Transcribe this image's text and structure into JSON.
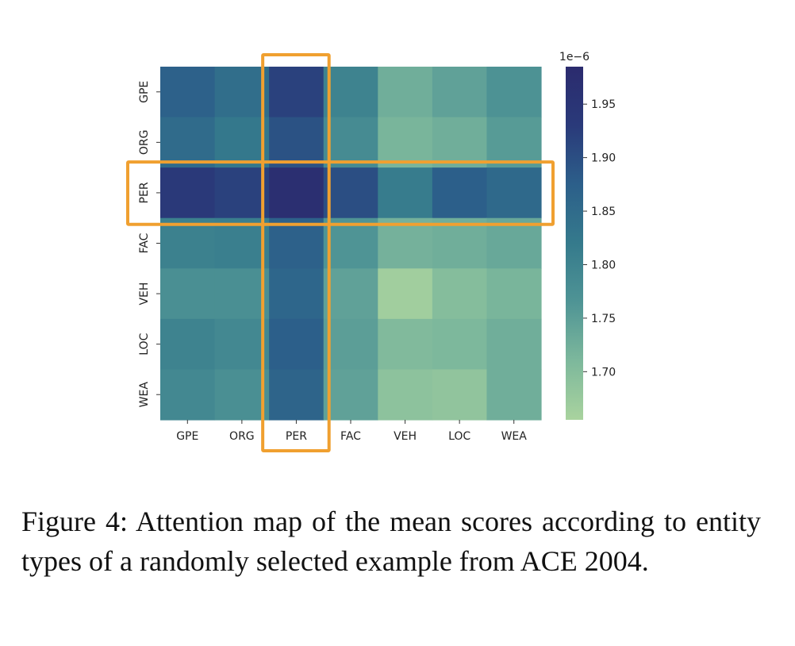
{
  "chart_data": {
    "type": "heatmap",
    "x_categories": [
      "GPE",
      "ORG",
      "PER",
      "FAC",
      "VEH",
      "LOC",
      "WEA"
    ],
    "y_categories": [
      "GPE",
      "ORG",
      "PER",
      "FAC",
      "VEH",
      "LOC",
      "WEA"
    ],
    "values": [
      [
        1.87,
        1.845,
        1.92,
        1.8,
        1.725,
        1.745,
        1.77
      ],
      [
        1.85,
        1.825,
        1.895,
        1.785,
        1.715,
        1.725,
        1.755
      ],
      [
        1.935,
        1.92,
        1.97,
        1.9,
        1.815,
        1.875,
        1.855
      ],
      [
        1.805,
        1.81,
        1.87,
        1.765,
        1.72,
        1.725,
        1.735
      ],
      [
        1.775,
        1.775,
        1.86,
        1.745,
        1.665,
        1.7,
        1.715
      ],
      [
        1.8,
        1.79,
        1.875,
        1.75,
        1.705,
        1.71,
        1.725
      ],
      [
        1.79,
        1.775,
        1.865,
        1.745,
        1.69,
        1.685,
        1.725
      ]
    ],
    "colorbar": {
      "range": [
        1.655,
        1.985
      ],
      "ticks": [
        "1.95",
        "1.90",
        "1.85",
        "1.80",
        "1.75",
        "1.70"
      ],
      "tick_values": [
        1.95,
        1.9,
        1.85,
        1.8,
        1.75,
        1.7
      ],
      "offset_label": "1e−6",
      "colormap": "crest",
      "color_stops": [
        "#a9d39e",
        "#7db89c",
        "#4f9495",
        "#357a8c",
        "#2c5f8a",
        "#2a3a7a",
        "#2b2b6e"
      ]
    },
    "highlights": [
      {
        "type": "column",
        "category": "PER",
        "color": "#f0a030"
      },
      {
        "type": "row",
        "category": "PER",
        "color": "#f0a030"
      }
    ]
  },
  "caption": "Figure 4: Attention map of the mean scores according to entity types of a randomly selected example from ACE 2004."
}
